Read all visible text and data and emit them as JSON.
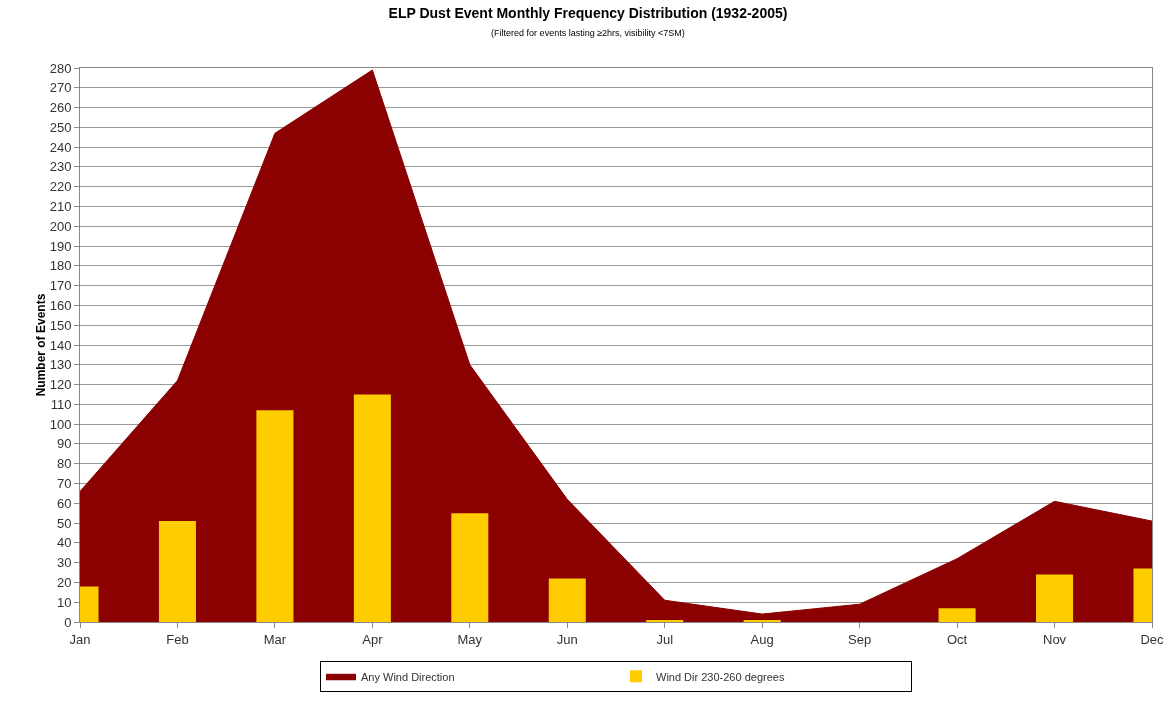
{
  "chart_data": {
    "type": "bar",
    "title": "ELP Dust Event Monthly Frequency Distribution (1932-2005)",
    "subtitle": "(Filtered for events lasting ≥2hrs, visibility <7SM)",
    "ylabel": "Number of Events",
    "categories": [
      "Jan",
      "Feb",
      "Mar",
      "Apr",
      "May",
      "Jun",
      "Jul",
      "Aug",
      "Sep",
      "Oct",
      "Nov",
      "Dec"
    ],
    "series": [
      {
        "name": "Any Wind Direction",
        "type": "area",
        "color": "#8b0000",
        "values": [
          66,
          122,
          247,
          279,
          130,
          62,
          11,
          4,
          9,
          32,
          61,
          51
        ]
      },
      {
        "name": "Wind Dir 230-260 degrees",
        "type": "bar",
        "color": "#ffcc00",
        "values": [
          18,
          51,
          107,
          115,
          55,
          22,
          1,
          1,
          0,
          7,
          24,
          27
        ]
      }
    ],
    "ylim": [
      0,
      280
    ],
    "yticks": [
      0,
      10,
      20,
      30,
      40,
      50,
      60,
      70,
      80,
      90,
      100,
      110,
      120,
      130,
      140,
      150,
      160,
      170,
      180,
      190,
      200,
      210,
      220,
      230,
      240,
      250,
      260,
      270,
      280
    ],
    "grid": "y",
    "legend": "bottom"
  }
}
